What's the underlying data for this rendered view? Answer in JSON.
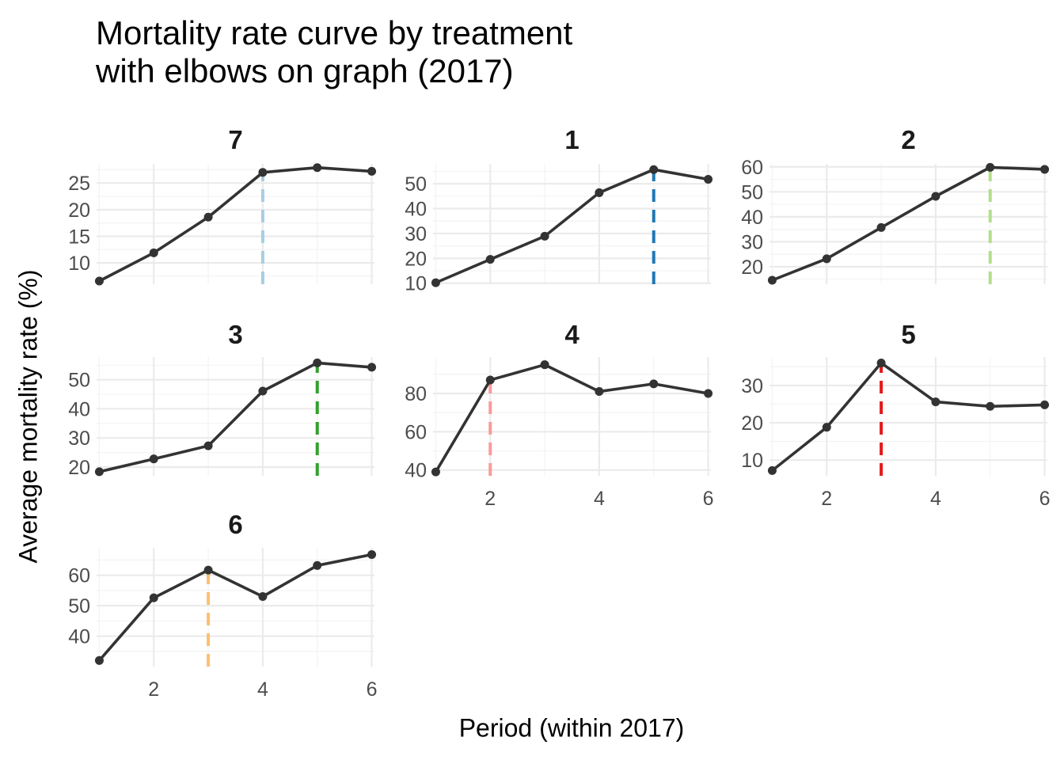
{
  "title": "Mortality rate curve by treatment\nwith elbows on graph (2017)",
  "chart_data": {
    "type": "line",
    "title": "Mortality rate curve by treatment\nwith elbows on graph (2017)",
    "xlabel": "Period (within 2017)",
    "ylabel": "Average mortality rate (%)",
    "x": [
      1,
      2,
      3,
      4,
      5,
      6
    ],
    "x_ticks": [
      2,
      4,
      6
    ],
    "xlim": [
      0.95,
      6.05
    ],
    "grid": true,
    "line_color": "#333333",
    "panels": [
      {
        "name": "7",
        "values": [
          6.6,
          11.9,
          18.6,
          27.0,
          27.9,
          27.2
        ],
        "elbow": 4,
        "elbow_color": "#A6CEE3",
        "y_ticks": [
          10,
          15,
          20,
          25
        ],
        "ylim": [
          6.0,
          28.6
        ]
      },
      {
        "name": "1",
        "values": [
          10.2,
          19.6,
          28.9,
          46.4,
          55.7,
          51.8
        ],
        "elbow": 5,
        "elbow_color": "#1F78B4",
        "y_ticks": [
          10,
          20,
          30,
          40,
          50
        ],
        "ylim": [
          9.6,
          58.0
        ]
      },
      {
        "name": "2",
        "values": [
          14.6,
          23.2,
          35.7,
          48.2,
          59.8,
          59.0
        ],
        "elbow": 5,
        "elbow_color": "#B2DF8A",
        "y_ticks": [
          20,
          30,
          40,
          50,
          60
        ],
        "ylim": [
          13.0,
          61.2
        ]
      },
      {
        "name": "3",
        "values": [
          18.4,
          22.8,
          27.3,
          46.1,
          55.8,
          54.3
        ],
        "elbow": 5,
        "elbow_color": "#33A02C",
        "y_ticks": [
          20,
          30,
          40,
          50
        ],
        "ylim": [
          17.0,
          57.8
        ]
      },
      {
        "name": "4",
        "values": [
          39.0,
          87.0,
          95.0,
          81.0,
          85.0,
          80.0
        ],
        "elbow": 2,
        "elbow_color": "#FB9A99",
        "y_ticks": [
          40,
          60,
          80
        ],
        "ylim": [
          37.0,
          99.0
        ]
      },
      {
        "name": "5",
        "values": [
          7.2,
          18.8,
          36.0,
          25.6,
          24.4,
          24.8
        ],
        "elbow": 3,
        "elbow_color": "#E31A1C",
        "y_ticks": [
          10,
          20,
          30
        ],
        "ylim": [
          5.8,
          37.6
        ]
      },
      {
        "name": "6",
        "values": [
          32.0,
          52.6,
          61.7,
          53.0,
          63.2,
          66.8
        ],
        "elbow": 3,
        "elbow_color": "#FDBF6F",
        "y_ticks": [
          40,
          50,
          60
        ],
        "ylim": [
          30.0,
          69.0
        ]
      }
    ]
  }
}
